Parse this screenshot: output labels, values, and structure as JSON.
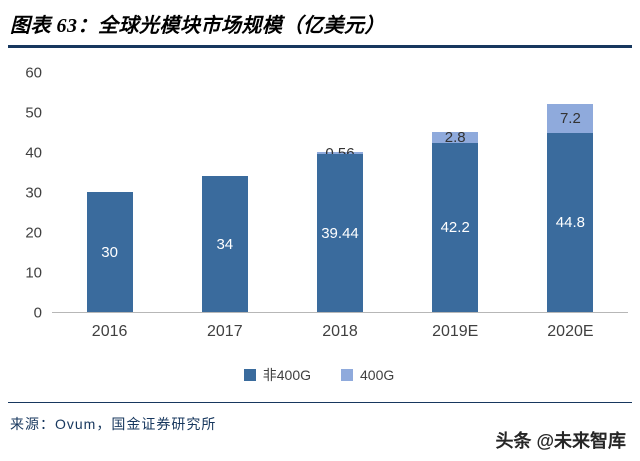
{
  "header": {
    "title": "图表 63：全球光模块市场规模（亿美元）"
  },
  "chart_data": {
    "type": "bar",
    "stacked": true,
    "title": "全球光模块市场规模（亿美元）",
    "categories": [
      "2016",
      "2017",
      "2018",
      "2019E",
      "2020E"
    ],
    "series": [
      {
        "name": "非400G",
        "color": "#3a6b9d",
        "values": [
          30,
          34,
          39.44,
          42.2,
          44.8
        ],
        "labels": [
          "30",
          "34",
          "39.44",
          "42.2",
          "44.8"
        ],
        "label_color": "#ffffff"
      },
      {
        "name": "400G",
        "color": "#8faadc",
        "values": [
          0,
          0,
          0.56,
          2.8,
          7.2
        ],
        "labels": [
          "",
          "",
          "0.56",
          "2.8",
          "7.2"
        ],
        "label_color": "#333333"
      }
    ],
    "ylim": [
      0,
      60
    ],
    "yticks": [
      0,
      10,
      20,
      30,
      40,
      50,
      60
    ],
    "grid": false,
    "legend_position": "bottom",
    "xlabel": "",
    "ylabel": ""
  },
  "colors": {
    "rule": "#17375e",
    "axis_text": "#404040"
  },
  "footer": {
    "source": "来源：Ovum，国金证券研究所",
    "watermark": "头条 @未来智库"
  }
}
